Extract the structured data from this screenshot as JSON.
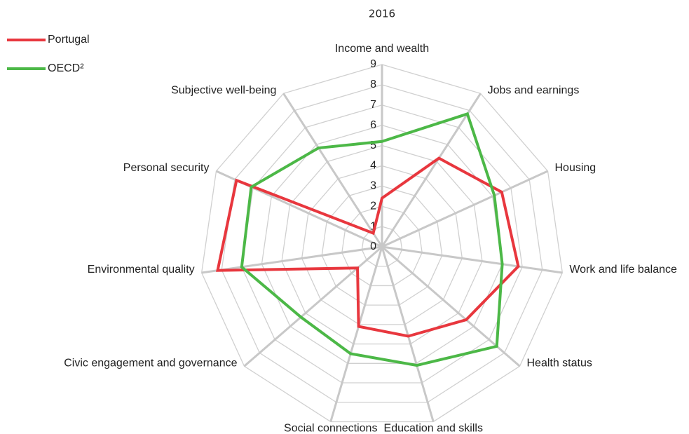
{
  "chart_data": {
    "type": "radar",
    "subtitle": "2016",
    "categories": [
      "Income and wealth",
      "Jobs and earnings",
      "Housing",
      "Work and life balance",
      "Health status",
      "Education and skills",
      "Social connections",
      "Civic engagement and governance",
      "Environmental quality",
      "Personal security",
      "Subjective well-being"
    ],
    "series": [
      {
        "name": "Portugal",
        "color": "#e8373e",
        "values": [
          2.4,
          5.2,
          6.5,
          6.8,
          5.5,
          4.6,
          4.1,
          1.6,
          8.2,
          7.9,
          0.8
        ]
      },
      {
        "name": "OECD²",
        "color": "#4cb847",
        "values": [
          5.2,
          7.8,
          6.1,
          6.0,
          7.5,
          6.1,
          5.5,
          5.3,
          7.0,
          7.1,
          5.8
        ]
      }
    ],
    "rlim": [
      0,
      9
    ],
    "rticks": [
      0,
      1,
      2,
      3,
      4,
      5,
      6,
      7,
      8,
      9
    ],
    "grid": true,
    "legend": "top-left"
  }
}
